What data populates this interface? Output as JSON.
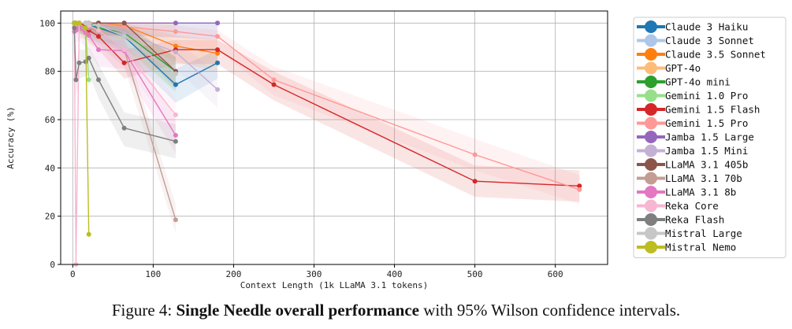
{
  "chart_data": {
    "type": "line",
    "xlabel": "Context Length (1k LLaMA 3.1 tokens)",
    "ylabel": "Accuracy (%)",
    "xlim": [
      -15,
      665
    ],
    "ylim": [
      0,
      105
    ],
    "xticks": [
      0,
      100,
      200,
      300,
      400,
      500,
      600
    ],
    "yticks": [
      0,
      20,
      40,
      60,
      80,
      100
    ],
    "grid": true,
    "legend_position": "right-outside",
    "series": [
      {
        "name": "Claude 3 Haiku",
        "color": "#1f77b4",
        "x": [
          2,
          4,
          8,
          16,
          20,
          32,
          64,
          128,
          180
        ],
        "y": [
          100,
          100,
          100,
          99,
          99,
          98,
          94.5,
          74.5,
          83.5
        ],
        "ci_lo": [
          98,
          97,
          96,
          95,
          94,
          92,
          88,
          67,
          77
        ],
        "ci_hi": [
          100,
          100,
          100,
          100,
          100,
          100,
          98,
          81,
          89
        ]
      },
      {
        "name": "Claude 3 Sonnet",
        "color": "#aec7e8",
        "x": [
          2,
          4,
          8,
          16,
          20,
          32,
          64,
          128,
          180
        ],
        "y": [
          100,
          100,
          100,
          100,
          100,
          100,
          100,
          100,
          100
        ],
        "ci_lo": [
          98,
          97,
          97,
          96,
          96,
          96,
          95,
          94,
          93
        ],
        "ci_hi": [
          100,
          100,
          100,
          100,
          100,
          100,
          100,
          100,
          100
        ]
      },
      {
        "name": "Claude 3.5 Sonnet",
        "color": "#ff7f0e",
        "x": [
          2,
          4,
          8,
          16,
          20,
          32,
          64,
          128,
          180
        ],
        "y": [
          100,
          100,
          100,
          100,
          100,
          100,
          99,
          90.5,
          87.5
        ],
        "ci_lo": [
          98,
          97,
          97,
          96,
          96,
          95,
          94,
          84,
          80
        ],
        "ci_hi": [
          100,
          100,
          100,
          100,
          100,
          100,
          100,
          95,
          93
        ]
      },
      {
        "name": "GPT-4o",
        "color": "#ffbb78",
        "x": [
          2,
          4,
          8,
          16,
          20,
          32,
          64,
          128
        ],
        "y": [
          100,
          100,
          100,
          100,
          100,
          100,
          100,
          100
        ],
        "ci_lo": [
          98,
          97,
          97,
          96,
          96,
          95,
          95,
          94
        ],
        "ci_hi": [
          100,
          100,
          100,
          100,
          100,
          100,
          100,
          100
        ]
      },
      {
        "name": "GPT-4o mini",
        "color": "#2ca02c",
        "x": [
          2,
          4,
          8,
          16,
          20,
          32,
          64,
          128
        ],
        "y": [
          100,
          100,
          100,
          100,
          100,
          98,
          96,
          80
        ],
        "ci_lo": [
          98,
          97,
          97,
          96,
          96,
          93,
          90,
          72
        ],
        "ci_hi": [
          100,
          100,
          100,
          100,
          100,
          100,
          99,
          86
        ]
      },
      {
        "name": "Gemini 1.0 Pro",
        "color": "#98df8a",
        "x": [
          2,
          4,
          8,
          16,
          20
        ],
        "y": [
          100,
          100,
          100,
          98,
          76.5
        ],
        "ci_lo": [
          98,
          97,
          96,
          93,
          68
        ],
        "ci_hi": [
          100,
          100,
          100,
          100,
          83
        ]
      },
      {
        "name": "Gemini 1.5 Flash",
        "color": "#d62728",
        "x": [
          2,
          4,
          8,
          16,
          20,
          32,
          64,
          128,
          180,
          250,
          500,
          630
        ],
        "y": [
          100,
          100,
          100,
          99,
          97,
          94.5,
          83.5,
          89,
          89,
          74.5,
          34.5,
          32.5
        ],
        "ci_lo": [
          98,
          97,
          96,
          95,
          92,
          89,
          77,
          83,
          83,
          68,
          28,
          26
        ],
        "ci_hi": [
          100,
          100,
          100,
          100,
          99,
          97,
          89,
          93,
          93,
          80,
          41,
          39
        ]
      },
      {
        "name": "Gemini 1.5 Pro",
        "color": "#ff9896",
        "x": [
          2,
          4,
          8,
          16,
          20,
          32,
          64,
          128,
          180,
          250,
          500,
          630
        ],
        "y": [
          100,
          100,
          100,
          100,
          100,
          100,
          98.5,
          96.5,
          94.5,
          76.5,
          45.5,
          31
        ],
        "ci_lo": [
          98,
          97,
          97,
          96,
          96,
          95,
          93,
          91,
          89,
          70,
          39,
          25
        ],
        "ci_hi": [
          100,
          100,
          100,
          100,
          100,
          100,
          100,
          99,
          97,
          82,
          52,
          37
        ]
      },
      {
        "name": "Jamba 1.5 Large",
        "color": "#9467bd",
        "x": [
          2,
          4,
          8,
          16,
          20,
          32,
          64,
          128,
          180
        ],
        "y": [
          100,
          100,
          100,
          100,
          100,
          100,
          100,
          100,
          100
        ],
        "ci_lo": [
          98,
          97,
          97,
          96,
          96,
          95,
          95,
          94,
          93
        ],
        "ci_hi": [
          100,
          100,
          100,
          100,
          100,
          100,
          100,
          100,
          100
        ]
      },
      {
        "name": "Jamba 1.5 Mini",
        "color": "#c5b0d5",
        "x": [
          2,
          4,
          8,
          16,
          20,
          32,
          64,
          128,
          180
        ],
        "y": [
          100,
          100,
          100,
          100,
          99,
          99,
          96,
          88,
          72.5
        ],
        "ci_lo": [
          98,
          97,
          96,
          95,
          94,
          93,
          90,
          81,
          65
        ],
        "ci_hi": [
          100,
          100,
          100,
          100,
          100,
          100,
          99,
          93,
          79
        ]
      },
      {
        "name": "LLaMA 3.1 405b",
        "color": "#8c564b",
        "x": [
          2,
          4,
          8,
          16,
          20,
          32,
          64,
          128
        ],
        "y": [
          100,
          100,
          100,
          100,
          100,
          100,
          100,
          80
        ],
        "ci_lo": [
          98,
          97,
          97,
          96,
          96,
          95,
          95,
          73
        ],
        "ci_hi": [
          100,
          100,
          100,
          100,
          100,
          100,
          100,
          86
        ]
      },
      {
        "name": "LLaMA 3.1 70b",
        "color": "#c49c94",
        "x": [
          2,
          4,
          8,
          16,
          20,
          32,
          64,
          128
        ],
        "y": [
          100,
          100,
          99,
          98,
          98,
          97,
          89,
          18.5
        ],
        "ci_lo": [
          98,
          97,
          94,
          93,
          93,
          91,
          82,
          13
        ],
        "ci_hi": [
          100,
          100,
          100,
          100,
          100,
          99,
          93,
          25
        ]
      },
      {
        "name": "LLaMA 3.1 8b",
        "color": "#e377c2",
        "x": [
          2,
          4,
          8,
          16,
          20,
          32,
          64,
          128
        ],
        "y": [
          96.5,
          97,
          98,
          96,
          95,
          89,
          88.5,
          53.5
        ],
        "ci_lo": [
          91,
          92,
          93,
          90,
          89,
          82,
          81,
          46
        ],
        "ci_hi": [
          99,
          99,
          100,
          99,
          98,
          93,
          93,
          61
        ]
      },
      {
        "name": "Reka Core",
        "color": "#f7b6d2",
        "x": [
          2,
          4,
          8,
          16,
          20,
          32,
          64,
          128
        ],
        "y": [
          99,
          0,
          100,
          100,
          99,
          97,
          89,
          62
        ],
        "ci_lo": [
          94,
          0,
          96,
          95,
          94,
          91,
          82,
          55
        ],
        "ci_hi": [
          100,
          3,
          100,
          100,
          100,
          99,
          93,
          69
        ]
      },
      {
        "name": "Reka Flash",
        "color": "#7f7f7f",
        "x": [
          2,
          4,
          8,
          16,
          20,
          32,
          64,
          128
        ],
        "y": [
          98,
          76.5,
          83.5,
          84,
          85.5,
          76.5,
          56.5,
          51
        ],
        "ci_lo": [
          93,
          69,
          77,
          78,
          79,
          69,
          49,
          44
        ],
        "ci_hi": [
          100,
          83,
          89,
          89,
          90,
          83,
          63,
          58
        ]
      },
      {
        "name": "Mistral Large",
        "color": "#c7c7c7",
        "x": [
          2,
          4,
          8,
          16,
          20,
          32,
          64,
          128
        ],
        "y": [
          100,
          100,
          100,
          100,
          100,
          99,
          94.5,
          79
        ],
        "ci_lo": [
          98,
          97,
          97,
          96,
          96,
          94,
          88,
          71
        ],
        "ci_hi": [
          100,
          100,
          100,
          100,
          100,
          100,
          98,
          85
        ]
      },
      {
        "name": "Mistral Nemo",
        "color": "#bcbd22",
        "x": [
          2,
          4,
          8,
          16,
          20
        ],
        "y": [
          100,
          100,
          100,
          98,
          12.5
        ],
        "ci_lo": [
          98,
          97,
          96,
          93,
          8
        ],
        "ci_hi": [
          100,
          100,
          100,
          100,
          19
        ]
      }
    ]
  },
  "caption": {
    "prefix": "Figure 4: ",
    "bold": "Single Needle overall performance",
    "suffix": " with 95% Wilson confidence intervals."
  }
}
